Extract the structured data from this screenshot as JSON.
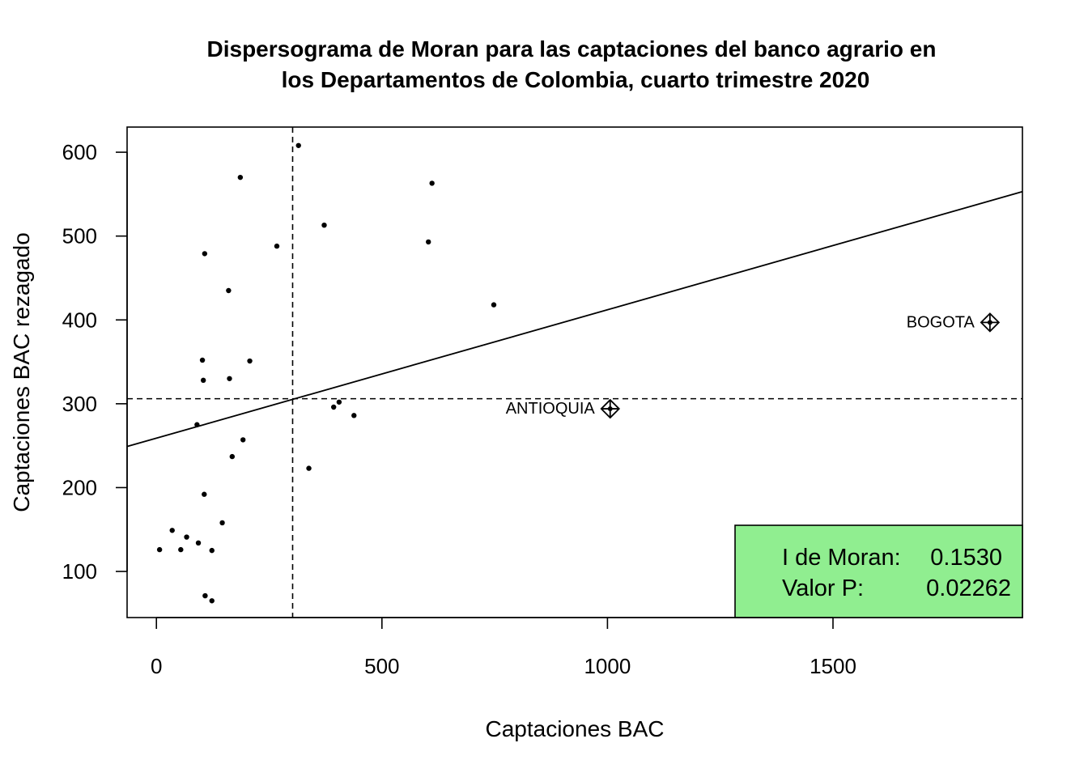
{
  "chart_data": {
    "type": "scatter",
    "title": [
      "Dispersograma de Moran para las captaciones del banco agrario en",
      "los Departamentos de Colombia, cuarto trimestre 2020"
    ],
    "xlabel": "Captaciones BAC",
    "ylabel": "Captaciones BAC rezagado",
    "xlim": [
      -65,
      1920
    ],
    "ylim": [
      45,
      630
    ],
    "xticks": [
      0,
      500,
      1000,
      1500
    ],
    "yticks": [
      100,
      200,
      300,
      400,
      500,
      600
    ],
    "grid": false,
    "mean_x": 302,
    "mean_y": 306,
    "regression_line": {
      "x": [
        -65,
        1920
      ],
      "y": [
        249,
        553
      ]
    },
    "points": [
      {
        "x": 315,
        "y": 608
      },
      {
        "x": 186,
        "y": 570
      },
      {
        "x": 611,
        "y": 563
      },
      {
        "x": 372,
        "y": 513
      },
      {
        "x": 603,
        "y": 493
      },
      {
        "x": 267,
        "y": 488
      },
      {
        "x": 107,
        "y": 479
      },
      {
        "x": 160,
        "y": 435
      },
      {
        "x": 748,
        "y": 418
      },
      {
        "x": 102,
        "y": 352
      },
      {
        "x": 207,
        "y": 351
      },
      {
        "x": 104,
        "y": 328
      },
      {
        "x": 162,
        "y": 330
      },
      {
        "x": 405,
        "y": 302
      },
      {
        "x": 393,
        "y": 296
      },
      {
        "x": 438,
        "y": 286
      },
      {
        "x": 90,
        "y": 275
      },
      {
        "x": 192,
        "y": 257
      },
      {
        "x": 168,
        "y": 237
      },
      {
        "x": 338,
        "y": 223
      },
      {
        "x": 106,
        "y": 192
      },
      {
        "x": 146,
        "y": 158
      },
      {
        "x": 35,
        "y": 149
      },
      {
        "x": 67,
        "y": 141
      },
      {
        "x": 93,
        "y": 134
      },
      {
        "x": 7,
        "y": 126
      },
      {
        "x": 54,
        "y": 126
      },
      {
        "x": 123,
        "y": 125
      },
      {
        "x": 108,
        "y": 71
      },
      {
        "x": 123,
        "y": 65
      }
    ],
    "influential_points": [
      {
        "label": "ANTIOQUIA",
        "x": 1006,
        "y": 294
      },
      {
        "label": "BOGOTA",
        "x": 1848,
        "y": 397
      }
    ],
    "stats_box": {
      "moran_label": "I de Moran:",
      "moran_value": "0.1530",
      "p_label": "Valor P:",
      "p_value": "0.02262",
      "color": "#90ee90",
      "placement": "bottom-right"
    }
  }
}
